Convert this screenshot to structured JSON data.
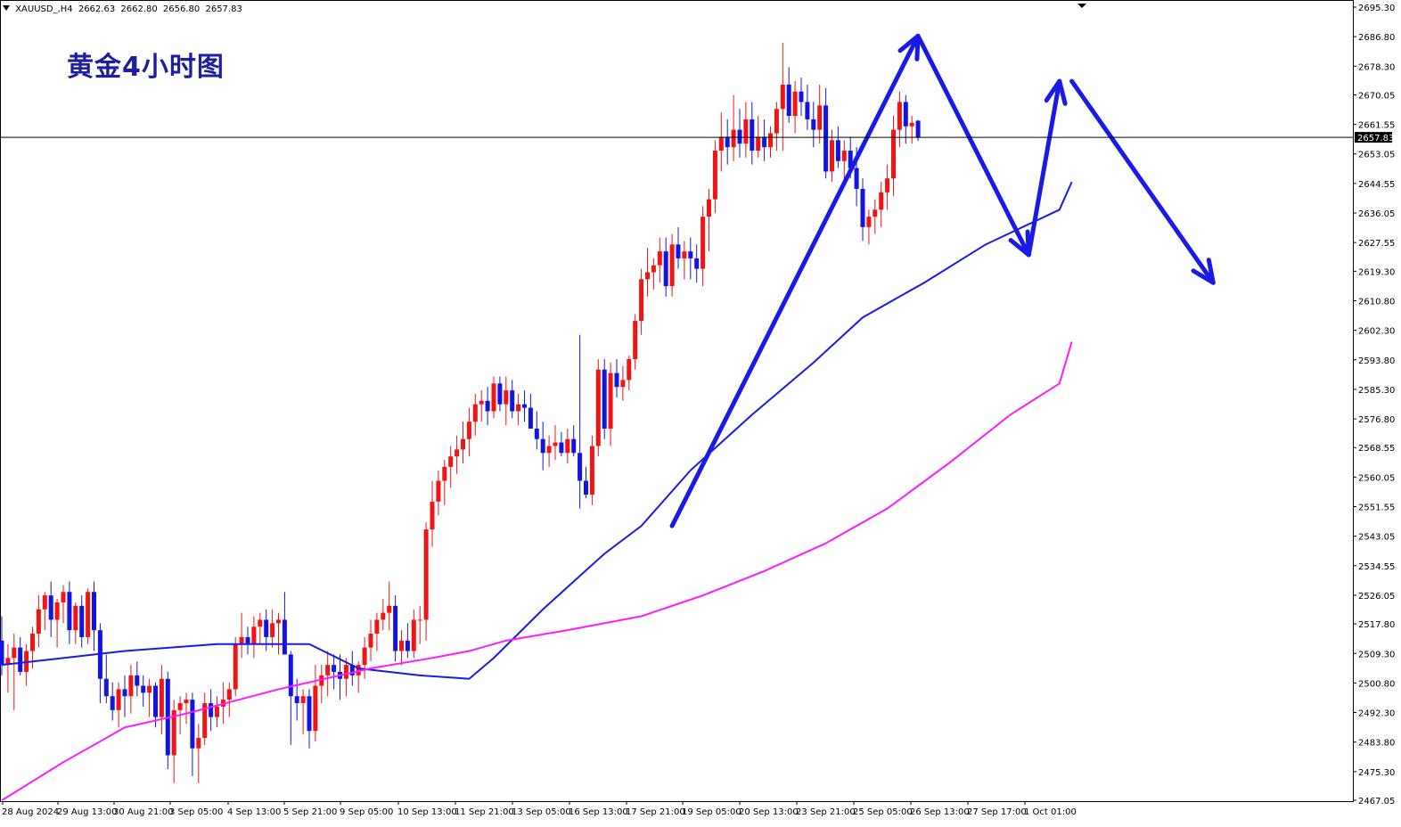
{
  "header": {
    "symbol": "XAUUSD_,H4",
    "open": "2662.63",
    "high": "2662.80",
    "low": "2656.80",
    "close": "2657.83"
  },
  "title": "黄金4小时图",
  "current_price_label": "2657.83",
  "colors": {
    "bull": "#f01414",
    "bear": "#1414e0",
    "ma_fast": "#1a1ae6",
    "ma_slow": "#ff1aff",
    "arrow": "#1a1ae6",
    "price_line": "#000000"
  },
  "chart_data": {
    "type": "candlestick",
    "title": "",
    "timeframe": "H4",
    "ylim": [
      2467.05,
      2695.3
    ],
    "y_ticks": [
      "2695.30",
      "2686.80",
      "2678.30",
      "2670.05",
      "2661.55",
      "2653.05",
      "2644.55",
      "2636.05",
      "2627.55",
      "2619.30",
      "2610.80",
      "2602.30",
      "2593.80",
      "2585.30",
      "2576.80",
      "2568.55",
      "2560.05",
      "2551.55",
      "2543.05",
      "2534.55",
      "2526.05",
      "2517.80",
      "2509.30",
      "2500.80",
      "2492.30",
      "2483.80",
      "2475.30",
      "2467.05"
    ],
    "x_ticks": [
      "28 Aug 2024",
      "29 Aug 13:00",
      "30 Aug 21:00",
      "3 Sep 05:00",
      "4 Sep 13:00",
      "5 Sep 21:00",
      "9 Sep 05:00",
      "10 Sep 13:00",
      "11 Sep 21:00",
      "13 Sep 05:00",
      "16 Sep 13:00",
      "17 Sep 21:00",
      "19 Sep 05:00",
      "20 Sep 13:00",
      "23 Sep 21:00",
      "25 Sep 05:00",
      "26 Sep 13:00",
      "27 Sep 17:00",
      "1 Oct 01:00"
    ],
    "current_price": 2657.83,
    "candles": [
      [
        2513,
        2520,
        2503,
        2506
      ],
      [
        2506,
        2512,
        2498,
        2508
      ],
      [
        2508,
        2515,
        2493,
        2511
      ],
      [
        2511,
        2514,
        2503,
        2504
      ],
      [
        2504,
        2512,
        2500,
        2510
      ],
      [
        2510,
        2517,
        2505,
        2515
      ],
      [
        2515,
        2526,
        2511,
        2522
      ],
      [
        2522,
        2527,
        2516,
        2526
      ],
      [
        2526,
        2530,
        2514,
        2519
      ],
      [
        2519,
        2525,
        2511,
        2524
      ],
      [
        2524,
        2529,
        2518,
        2527
      ],
      [
        2527,
        2530,
        2512,
        2516
      ],
      [
        2516,
        2524,
        2512,
        2523
      ],
      [
        2523,
        2526,
        2511,
        2514
      ],
      [
        2514,
        2528,
        2512,
        2527
      ],
      [
        2527,
        2530,
        2510,
        2516
      ],
      [
        2516,
        2518,
        2495,
        2502
      ],
      [
        2502,
        2509,
        2495,
        2497
      ],
      [
        2497,
        2501,
        2490,
        2493
      ],
      [
        2493,
        2501,
        2488,
        2499
      ],
      [
        2499,
        2503,
        2491,
        2497
      ],
      [
        2497,
        2506,
        2492,
        2503
      ],
      [
        2503,
        2507,
        2497,
        2500
      ],
      [
        2500,
        2503,
        2494,
        2498
      ],
      [
        2498,
        2502,
        2491,
        2500
      ],
      [
        2500,
        2501,
        2488,
        2491
      ],
      [
        2491,
        2506,
        2486,
        2502
      ],
      [
        2502,
        2504,
        2476,
        2480
      ],
      [
        2480,
        2496,
        2472,
        2493
      ],
      [
        2493,
        2497,
        2486,
        2495
      ],
      [
        2495,
        2498,
        2489,
        2496
      ],
      [
        2496,
        2498,
        2474,
        2482
      ],
      [
        2482,
        2489,
        2472,
        2485
      ],
      [
        2485,
        2498,
        2483,
        2495
      ],
      [
        2495,
        2499,
        2487,
        2491
      ],
      [
        2491,
        2497,
        2488,
        2494
      ],
      [
        2494,
        2501,
        2489,
        2496
      ],
      [
        2496,
        2501,
        2491,
        2499
      ],
      [
        2499,
        2514,
        2497,
        2512
      ],
      [
        2512,
        2521,
        2508,
        2514
      ],
      [
        2514,
        2517,
        2509,
        2512
      ],
      [
        2512,
        2520,
        2508,
        2517
      ],
      [
        2517,
        2521,
        2512,
        2519
      ],
      [
        2519,
        2522,
        2510,
        2514
      ],
      [
        2514,
        2522,
        2511,
        2518
      ],
      [
        2518,
        2521,
        2509,
        2519
      ],
      [
        2519,
        2527,
        2510,
        2509
      ],
      [
        2509,
        2510,
        2483,
        2497
      ],
      [
        2497,
        2502,
        2490,
        2495
      ],
      [
        2495,
        2499,
        2486,
        2497
      ],
      [
        2497,
        2499,
        2482,
        2487
      ],
      [
        2487,
        2506,
        2484,
        2500
      ],
      [
        2500,
        2506,
        2495,
        2503
      ],
      [
        2503,
        2510,
        2497,
        2506
      ],
      [
        2506,
        2509,
        2499,
        2504
      ],
      [
        2504,
        2509,
        2496,
        2502
      ],
      [
        2502,
        2508,
        2497,
        2506
      ],
      [
        2506,
        2510,
        2500,
        2503
      ],
      [
        2503,
        2507,
        2498,
        2506
      ],
      [
        2506,
        2514,
        2502,
        2511
      ],
      [
        2511,
        2519,
        2507,
        2515
      ],
      [
        2515,
        2521,
        2510,
        2519
      ],
      [
        2519,
        2525,
        2516,
        2521
      ],
      [
        2521,
        2530,
        2516,
        2523
      ],
      [
        2523,
        2526,
        2507,
        2510
      ],
      [
        2510,
        2516,
        2506,
        2513
      ],
      [
        2513,
        2518,
        2508,
        2510
      ],
      [
        2510,
        2522,
        2508,
        2519
      ],
      [
        2519,
        2523,
        2512,
        2519
      ],
      [
        2519,
        2547,
        2513,
        2545
      ],
      [
        2545,
        2559,
        2540,
        2553
      ],
      [
        2553,
        2562,
        2549,
        2559
      ],
      [
        2559,
        2565,
        2552,
        2563
      ],
      [
        2563,
        2569,
        2557,
        2566
      ],
      [
        2566,
        2572,
        2561,
        2568
      ],
      [
        2568,
        2576,
        2564,
        2571
      ],
      [
        2571,
        2580,
        2566,
        2576
      ],
      [
        2576,
        2584,
        2572,
        2581
      ],
      [
        2581,
        2585,
        2576,
        2582
      ],
      [
        2582,
        2586,
        2575,
        2579
      ],
      [
        2579,
        2589,
        2577,
        2587
      ],
      [
        2587,
        2589,
        2579,
        2581
      ],
      [
        2581,
        2589,
        2575,
        2585
      ],
      [
        2585,
        2588,
        2577,
        2579
      ],
      [
        2579,
        2584,
        2575,
        2581
      ],
      [
        2581,
        2585,
        2576,
        2580
      ],
      [
        2580,
        2584,
        2574,
        2574
      ],
      [
        2574,
        2579,
        2568,
        2571
      ],
      [
        2571,
        2576,
        2562,
        2567
      ],
      [
        2567,
        2572,
        2563,
        2569
      ],
      [
        2569,
        2575,
        2565,
        2570
      ],
      [
        2570,
        2573,
        2566,
        2567
      ],
      [
        2567,
        2574,
        2564,
        2571
      ],
      [
        2571,
        2575,
        2566,
        2567
      ],
      [
        2567,
        2601,
        2551,
        2559
      ],
      [
        2559,
        2563,
        2554,
        2555
      ],
      [
        2555,
        2572,
        2552,
        2569
      ],
      [
        2569,
        2594,
        2566,
        2591
      ],
      [
        2591,
        2594,
        2571,
        2574
      ],
      [
        2574,
        2593,
        2569,
        2590
      ],
      [
        2590,
        2594,
        2583,
        2586
      ],
      [
        2586,
        2592,
        2582,
        2588
      ],
      [
        2588,
        2595,
        2585,
        2594
      ],
      [
        2594,
        2607,
        2591,
        2605
      ],
      [
        2605,
        2620,
        2601,
        2617
      ],
      [
        2617,
        2626,
        2612,
        2619
      ],
      [
        2619,
        2623,
        2614,
        2621
      ],
      [
        2621,
        2629,
        2616,
        2625
      ],
      [
        2625,
        2629,
        2612,
        2615
      ],
      [
        2615,
        2630,
        2612,
        2627
      ],
      [
        2627,
        2632,
        2620,
        2623
      ],
      [
        2623,
        2628,
        2617,
        2625
      ],
      [
        2625,
        2629,
        2617,
        2623
      ],
      [
        2623,
        2627,
        2616,
        2620
      ],
      [
        2620,
        2638,
        2615,
        2635
      ],
      [
        2635,
        2643,
        2625,
        2640
      ],
      [
        2640,
        2657,
        2636,
        2654
      ],
      [
        2654,
        2665,
        2648,
        2658
      ],
      [
        2658,
        2663,
        2650,
        2655
      ],
      [
        2655,
        2670,
        2651,
        2660
      ],
      [
        2660,
        2666,
        2652,
        2656
      ],
      [
        2656,
        2668,
        2652,
        2663
      ],
      [
        2663,
        2668,
        2650,
        2654
      ],
      [
        2654,
        2664,
        2652,
        2658
      ],
      [
        2658,
        2663,
        2651,
        2655
      ],
      [
        2655,
        2661,
        2652,
        2659
      ],
      [
        2659,
        2668,
        2654,
        2666
      ],
      [
        2666,
        2685,
        2654,
        2673
      ],
      [
        2673,
        2678,
        2662,
        2664
      ],
      [
        2664,
        2674,
        2659,
        2671
      ],
      [
        2671,
        2675,
        2664,
        2668
      ],
      [
        2668,
        2673,
        2660,
        2663
      ],
      [
        2663,
        2668,
        2655,
        2660
      ],
      [
        2660,
        2673,
        2656,
        2667
      ],
      [
        2667,
        2672,
        2646,
        2648
      ],
      [
        2648,
        2660,
        2645,
        2657
      ],
      [
        2657,
        2661,
        2649,
        2651
      ],
      [
        2651,
        2657,
        2644,
        2654
      ],
      [
        2654,
        2658,
        2646,
        2649
      ],
      [
        2649,
        2655,
        2638,
        2643
      ],
      [
        2643,
        2646,
        2628,
        2632
      ],
      [
        2632,
        2637,
        2627,
        2635
      ],
      [
        2635,
        2640,
        2630,
        2637
      ],
      [
        2637,
        2645,
        2632,
        2642
      ],
      [
        2642,
        2650,
        2637,
        2646
      ],
      [
        2646,
        2664,
        2641,
        2660
      ],
      [
        2660,
        2671,
        2655,
        2668
      ],
      [
        2668,
        2670,
        2656,
        2661
      ],
      [
        2661,
        2664,
        2656,
        2662
      ],
      [
        2662.63,
        2662.8,
        2656.8,
        2657.83
      ]
    ],
    "series": [
      {
        "name": "",
        "type": "ma",
        "color": "fast",
        "values": [
          [
            0,
            2506
          ],
          [
            10,
            2508
          ],
          [
            20,
            2510
          ],
          [
            35,
            2512
          ],
          [
            50,
            2512
          ],
          [
            58,
            2505
          ],
          [
            68,
            2503
          ],
          [
            76,
            2502
          ],
          [
            80,
            2508
          ],
          [
            88,
            2522
          ],
          [
            98,
            2538
          ],
          [
            104,
            2546
          ],
          [
            112,
            2562
          ],
          [
            122,
            2578
          ],
          [
            132,
            2593
          ],
          [
            140,
            2606
          ],
          [
            150,
            2616
          ],
          [
            160,
            2627
          ],
          [
            172,
            2637
          ],
          [
            174,
            2645
          ]
        ]
      },
      {
        "name": "",
        "type": "ma",
        "color": "slow",
        "values": [
          [
            0,
            2467
          ],
          [
            10,
            2478
          ],
          [
            20,
            2488
          ],
          [
            30,
            2492
          ],
          [
            45,
            2499
          ],
          [
            60,
            2505
          ],
          [
            70,
            2508
          ],
          [
            76,
            2510
          ],
          [
            82,
            2513
          ],
          [
            92,
            2516
          ],
          [
            104,
            2520
          ],
          [
            114,
            2526
          ],
          [
            124,
            2533
          ],
          [
            134,
            2541
          ],
          [
            144,
            2551
          ],
          [
            154,
            2564
          ],
          [
            164,
            2578
          ],
          [
            172,
            2587
          ],
          [
            174,
            2599
          ]
        ]
      }
    ],
    "annotations": [
      {
        "type": "arrow",
        "from": [
          109,
          2546
        ],
        "to": [
          149,
          2687
        ]
      },
      {
        "type": "arrow",
        "from": [
          149,
          2687
        ],
        "to": [
          167,
          2624
        ]
      },
      {
        "type": "arrow",
        "from": [
          167,
          2624
        ],
        "to": [
          172,
          2674
        ]
      },
      {
        "type": "arrow",
        "from": [
          174,
          2674
        ],
        "to": [
          197,
          2616
        ]
      }
    ]
  }
}
